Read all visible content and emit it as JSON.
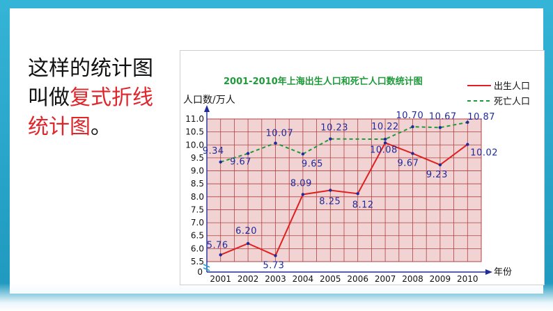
{
  "caption": {
    "part1": "这样的统计图叫做",
    "part2": "复式折线统计图",
    "part3": "。"
  },
  "colors": {
    "births": "#e02020",
    "deaths": "#1f9a3a",
    "value_labels": "#1f2a9c",
    "axis": "#1f2a9c",
    "grid": "#b04040",
    "plot_bg": "#f2d3d3",
    "title": "#1f9a3a"
  },
  "chart_data": {
    "type": "line",
    "title": "2001-2010年上海出生人口和死亡人口数统计图",
    "ylabel": "人口数/万人",
    "xlabel": "年份",
    "x": [
      "2001",
      "2002",
      "2003",
      "2004",
      "2005",
      "2006",
      "2007",
      "2008",
      "2009",
      "2010"
    ],
    "yticks": [
      "0",
      "5.5",
      "6.0",
      "6.5",
      "7.0",
      "7.5",
      "8.0",
      "8.5",
      "9.0",
      "9.5",
      "10.0",
      "10.5",
      "11.0"
    ],
    "ylim": [
      5.5,
      11.0
    ],
    "axis_break": true,
    "grid": true,
    "legend_position": "top-right",
    "series": [
      {
        "name": "出生人口",
        "style": "solid",
        "values": [
          5.76,
          6.2,
          5.73,
          8.09,
          8.25,
          8.12,
          10.08,
          9.67,
          9.23,
          10.02
        ],
        "labels": [
          "5.76",
          "6.20",
          "5.73",
          "8.09",
          "8.25",
          "8.12",
          "10.08",
          "9.67",
          "9.23",
          "10.02"
        ]
      },
      {
        "name": "死亡人口",
        "style": "dashed",
        "values": [
          9.34,
          9.67,
          10.07,
          9.65,
          10.23,
          null,
          10.22,
          10.7,
          10.67,
          10.87
        ],
        "labels": [
          "9.34",
          "9.67",
          "10.07",
          "9.65",
          "10.23",
          "",
          "10.22",
          "10.70",
          "10.67",
          "10.87"
        ]
      }
    ]
  }
}
